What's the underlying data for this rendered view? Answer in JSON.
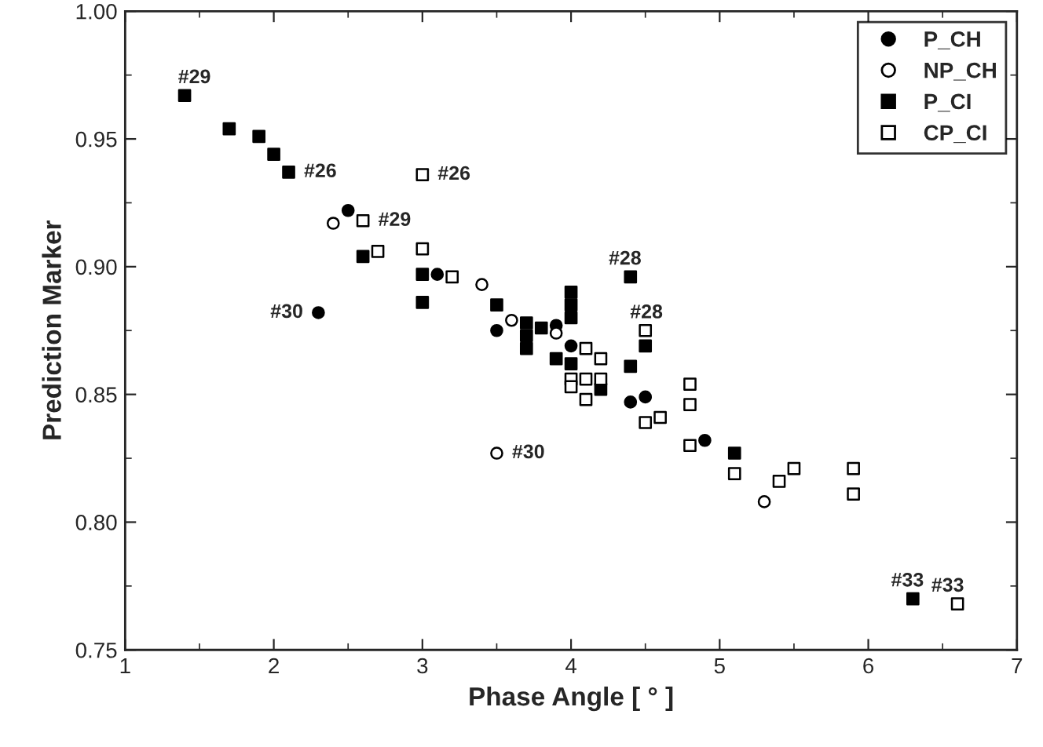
{
  "chart_data": {
    "type": "scatter",
    "xlabel": "Phase Angle [ ° ]",
    "ylabel": "Prediction Marker",
    "xlim": [
      1,
      7
    ],
    "ylim": [
      0.75,
      1.0
    ],
    "xticks": [
      1,
      2,
      3,
      4,
      5,
      6,
      7
    ],
    "yticks": [
      {
        "value": 0.75,
        "label": "0.75"
      },
      {
        "value": 0.8,
        "label": "0.80"
      },
      {
        "value": 0.85,
        "label": "0.85"
      },
      {
        "value": 0.9,
        "label": "0.90"
      },
      {
        "value": 0.95,
        "label": "0.95"
      },
      {
        "value": 1.0,
        "label": "1.00"
      }
    ],
    "grid": false,
    "legend": "top right",
    "series": [
      {
        "name": "P_CH",
        "marker": "circle",
        "color": "#000000",
        "x": [
          2.3,
          2.5,
          3.1,
          3.5,
          3.9,
          4.0,
          4.4,
          4.5,
          4.9
        ],
        "values": [
          0.882,
          0.922,
          0.897,
          0.875,
          0.877,
          0.869,
          0.847,
          0.849,
          0.832
        ]
      },
      {
        "name": "NP_CH",
        "marker": "circle",
        "color": "#ffffff",
        "x": [
          2.4,
          3.4,
          3.6,
          3.9,
          3.5,
          5.3
        ],
        "values": [
          0.917,
          0.893,
          0.879,
          0.874,
          0.827,
          0.808
        ]
      },
      {
        "name": "P_CI",
        "marker": "square",
        "color": "#000000",
        "x": [
          1.4,
          1.7,
          1.9,
          2.0,
          2.1,
          2.6,
          3.0,
          3.0,
          3.5,
          3.7,
          3.7,
          3.7,
          3.8,
          3.9,
          4.0,
          4.0,
          4.0,
          4.0,
          4.2,
          4.4,
          4.4,
          4.5,
          5.1,
          6.3
        ],
        "values": [
          0.967,
          0.954,
          0.951,
          0.944,
          0.937,
          0.904,
          0.897,
          0.886,
          0.885,
          0.878,
          0.873,
          0.868,
          0.876,
          0.864,
          0.89,
          0.885,
          0.88,
          0.862,
          0.852,
          0.896,
          0.861,
          0.869,
          0.827,
          0.77
        ]
      },
      {
        "name": "CP_CI",
        "marker": "square",
        "color": "#ffffff",
        "x": [
          2.6,
          2.7,
          3.0,
          3.0,
          3.2,
          4.1,
          4.2,
          4.0,
          4.1,
          4.2,
          4.0,
          4.1,
          4.5,
          4.5,
          4.6,
          4.8,
          4.8,
          4.8,
          5.1,
          5.4,
          5.5,
          5.9,
          5.9,
          6.6
        ],
        "values": [
          0.918,
          0.906,
          0.936,
          0.907,
          0.896,
          0.868,
          0.864,
          0.856,
          0.856,
          0.856,
          0.853,
          0.848,
          0.875,
          0.839,
          0.841,
          0.854,
          0.846,
          0.83,
          0.819,
          0.816,
          0.821,
          0.821,
          0.811,
          0.768
        ]
      }
    ],
    "annotations": [
      {
        "text": "#29",
        "x": 1.4,
        "y": 0.967
      },
      {
        "text": "#26",
        "x": 2.1,
        "y": 0.937
      },
      {
        "text": "#26",
        "x": 3.0,
        "y": 0.936
      },
      {
        "text": "#29",
        "x": 2.6,
        "y": 0.918
      },
      {
        "text": "#30",
        "x": 2.3,
        "y": 0.882
      },
      {
        "text": "#28",
        "x": 4.4,
        "y": 0.896
      },
      {
        "text": "#28",
        "x": 4.5,
        "y": 0.875
      },
      {
        "text": "#30",
        "x": 3.5,
        "y": 0.827
      },
      {
        "text": "#33",
        "x": 6.3,
        "y": 0.77
      },
      {
        "text": "#33",
        "x": 6.6,
        "y": 0.768
      }
    ]
  }
}
